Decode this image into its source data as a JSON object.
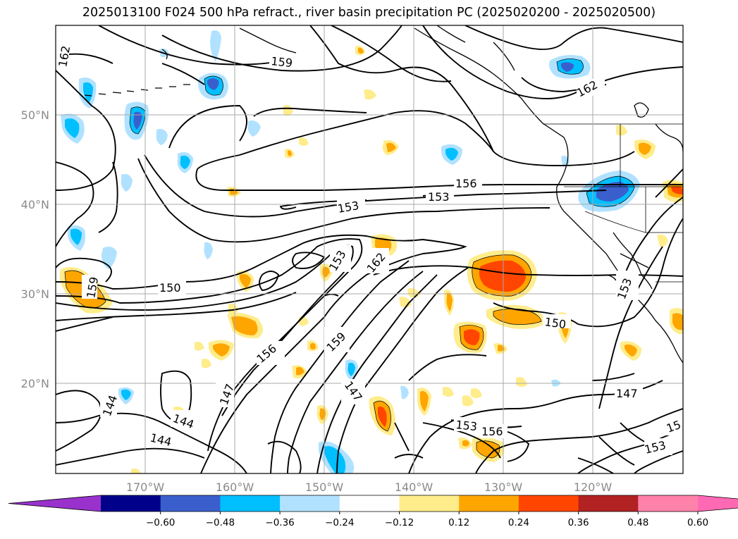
{
  "title": "2025013100 F024 500 hPa refract., river basin precipitation PC (2025020200 - 2025020500)",
  "lon_labels": [
    "170°W",
    "160°W",
    "150°W",
    "140°W",
    "130°W",
    "120°W"
  ],
  "lat_labels": [
    "50°N",
    "40°N",
    "30°N",
    "20°N"
  ],
  "colorbar": {
    "colors": [
      "#9932cc",
      "#00008b",
      "#3a5fcd",
      "#00bfff",
      "#b0e2ff",
      "#ffffff",
      "#ffec8b",
      "#ffa500",
      "#ff4500",
      "#b22222",
      "#ff82ab",
      "#ff69b4"
    ],
    "labels": [
      "−0.60",
      "−0.48",
      "−0.36",
      "−0.24",
      "−0.12",
      "0.12",
      "0.24",
      "0.36",
      "0.48",
      "0.60"
    ]
  },
  "contour_labels": [
    "162",
    "159",
    "162",
    "156",
    "153",
    "153",
    "150",
    "159",
    "153",
    "162",
    "150",
    "156",
    "159",
    "147",
    "147",
    "144",
    "144",
    "144",
    "147",
    "153",
    "156",
    "153",
    "153",
    "15"
  ]
}
